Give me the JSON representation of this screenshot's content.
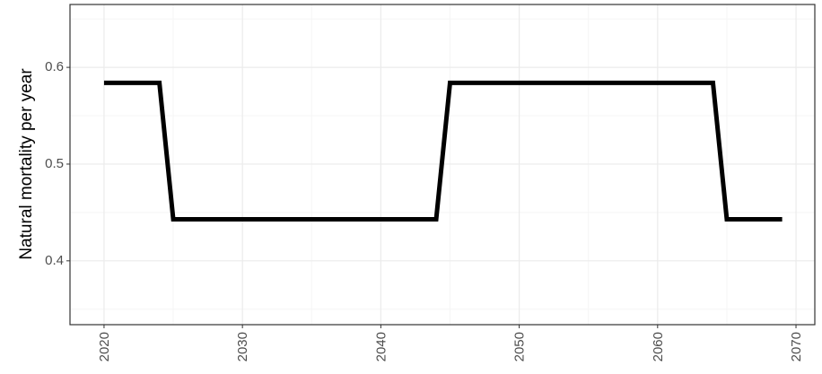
{
  "chart_data": {
    "type": "line",
    "y_label": "Natural mortality per year",
    "x": [
      2020,
      2024,
      2025,
      2044,
      2045,
      2064,
      2065,
      2069
    ],
    "series": [
      {
        "name": null,
        "color": "#000000",
        "values": [
          0.584,
          0.584,
          0.443,
          0.443,
          0.584,
          0.584,
          0.443,
          0.443
        ]
      }
    ],
    "xlim": [
      2017.54,
      2071.36
    ],
    "xticks": [
      2020,
      2030,
      2040,
      2050,
      2060,
      2070
    ],
    "ylim": [
      0.334,
      0.665
    ],
    "yticks": [
      0.4,
      0.5,
      0.6
    ],
    "grid": true
  }
}
